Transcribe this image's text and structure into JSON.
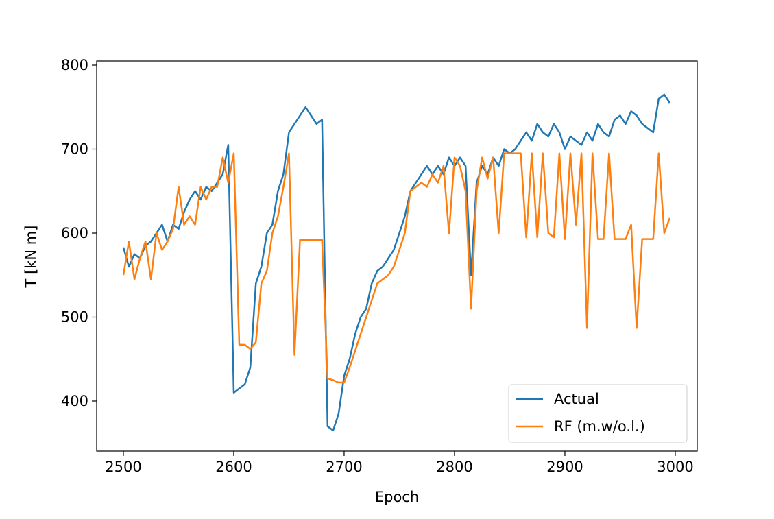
{
  "chart_data": {
    "type": "line",
    "xlabel": "Epoch",
    "ylabel": "T [kN m]",
    "xlim": [
      2475.8,
      3019.9
    ],
    "ylim": [
      340.4,
      804.9
    ],
    "xticks": [
      2500,
      2600,
      2700,
      2800,
      2900,
      3000
    ],
    "yticks": [
      400,
      500,
      600,
      700,
      800
    ],
    "legend": "lower right",
    "x": [
      2500,
      2505,
      2510,
      2515,
      2520,
      2525,
      2530,
      2535,
      2540,
      2545,
      2550,
      2555,
      2560,
      2565,
      2570,
      2575,
      2580,
      2585,
      2590,
      2595,
      2600,
      2605,
      2610,
      2615,
      2620,
      2625,
      2630,
      2635,
      2640,
      2645,
      2650,
      2655,
      2660,
      2665,
      2670,
      2675,
      2680,
      2685,
      2690,
      2695,
      2700,
      2705,
      2710,
      2715,
      2720,
      2725,
      2730,
      2735,
      2740,
      2745,
      2750,
      2755,
      2760,
      2765,
      2770,
      2775,
      2780,
      2785,
      2790,
      2795,
      2800,
      2805,
      2810,
      2815,
      2820,
      2825,
      2830,
      2835,
      2840,
      2845,
      2850,
      2855,
      2860,
      2865,
      2870,
      2875,
      2880,
      2885,
      2890,
      2895,
      2900,
      2905,
      2910,
      2915,
      2920,
      2925,
      2930,
      2935,
      2940,
      2945,
      2950,
      2955,
      2960,
      2965,
      2970,
      2975,
      2980,
      2985,
      2990,
      2995
    ],
    "series": [
      {
        "name": "Actual",
        "color": "#1f77b4",
        "values": [
          583,
          560,
          575,
          570,
          585,
          590,
          600,
          610,
          590,
          610,
          605,
          625,
          640,
          650,
          640,
          655,
          650,
          660,
          670,
          705,
          410,
          415,
          420,
          440,
          540,
          560,
          600,
          610,
          650,
          670,
          720,
          730,
          740,
          750,
          740,
          730,
          735,
          370,
          365,
          385,
          430,
          450,
          480,
          500,
          510,
          540,
          555,
          560,
          570,
          580,
          600,
          620,
          650,
          660,
          670,
          680,
          670,
          680,
          670,
          690,
          680,
          690,
          680,
          550,
          660,
          680,
          670,
          690,
          680,
          700,
          695,
          700,
          710,
          720,
          710,
          730,
          720,
          715,
          730,
          720,
          700,
          715,
          710,
          705,
          720,
          710,
          730,
          720,
          715,
          735,
          740,
          730,
          745,
          740,
          730,
          725,
          720,
          760,
          765,
          755
        ]
      },
      {
        "name": "RF (m.w/o.l.)",
        "color": "#ff7f0e",
        "values": [
          550,
          590,
          545,
          570,
          590,
          545,
          600,
          580,
          590,
          605,
          655,
          610,
          620,
          610,
          655,
          640,
          655,
          655,
          690,
          660,
          695,
          467,
          467,
          462,
          470,
          540,
          555,
          600,
          620,
          655,
          695,
          455,
          592,
          592,
          592,
          592,
          592,
          427,
          425,
          422,
          422,
          440,
          460,
          480,
          500,
          520,
          540,
          545,
          550,
          560,
          580,
          600,
          650,
          655,
          660,
          655,
          670,
          660,
          680,
          600,
          690,
          680,
          650,
          510,
          650,
          690,
          665,
          690,
          600,
          695,
          695,
          695,
          695,
          595,
          695,
          595,
          695,
          600,
          595,
          695,
          593,
          695,
          610,
          695,
          487,
          695,
          593,
          593,
          695,
          593,
          593,
          593,
          610,
          487,
          593,
          593,
          593,
          695,
          600,
          618
        ]
      }
    ]
  }
}
